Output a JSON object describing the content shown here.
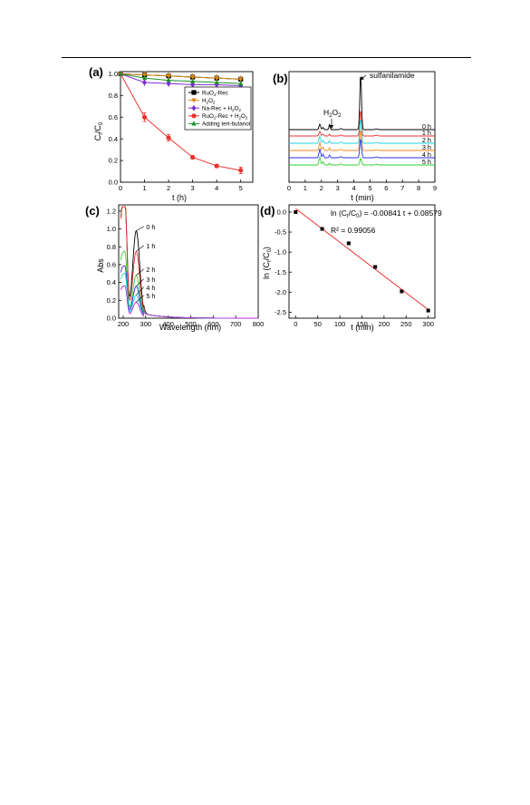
{
  "chart_data": [
    {
      "panel": "(a)",
      "type": "line",
      "title": "",
      "xlabel": "t (h)",
      "ylabel": "C_t/C_0",
      "xlim": [
        0,
        5.5
      ],
      "ylim": [
        0,
        1.02
      ],
      "xticks": [
        "0",
        "1",
        "2",
        "3",
        "4",
        "5"
      ],
      "yticks": [
        "0.0",
        "0.2",
        "0.4",
        "0.6",
        "0.8",
        "1.0"
      ],
      "legend_position": "center-right",
      "series": [
        {
          "name": "RuO2-Rec",
          "color": "#000000",
          "marker": "square",
          "x": [
            0,
            1,
            2,
            3,
            4,
            5
          ],
          "values": [
            1.0,
            0.99,
            0.98,
            0.97,
            0.96,
            0.95
          ]
        },
        {
          "name": "H2O2",
          "color": "#d98a1c",
          "marker": "triangle-down",
          "x": [
            0,
            1,
            2,
            3,
            4,
            5
          ],
          "values": [
            1.0,
            0.99,
            0.98,
            0.97,
            0.96,
            0.95
          ]
        },
        {
          "name": "Na-Rec + H2O2",
          "color": "#7a2fd1",
          "marker": "diamond",
          "x": [
            0,
            1,
            2,
            3,
            4,
            5
          ],
          "values": [
            1.0,
            0.92,
            0.91,
            0.9,
            0.9,
            0.89
          ]
        },
        {
          "name": "RuO2-Rec + H2O2",
          "color": "#e8332f",
          "marker": "circle",
          "x": [
            0,
            1,
            2,
            3,
            4,
            5
          ],
          "values": [
            1.0,
            0.6,
            0.41,
            0.23,
            0.15,
            0.11
          ],
          "errors": [
            0,
            0.04,
            0.03,
            0.015,
            0.015,
            0.03
          ]
        },
        {
          "name": "Adding tert-butanol",
          "color": "#1f8f2a",
          "marker": "triangle-up",
          "x": [
            0,
            1,
            2,
            3,
            4,
            5
          ],
          "values": [
            1.0,
            0.96,
            0.94,
            0.93,
            0.92,
            0.91
          ]
        }
      ]
    },
    {
      "panel": "(b)",
      "type": "line",
      "xlabel": "t (min)",
      "xlim": [
        0,
        9
      ],
      "xticks": [
        "0",
        "1",
        "2",
        "3",
        "4",
        "5",
        "6",
        "7",
        "8",
        "9"
      ],
      "annotations": [
        "sulfanilamide",
        "H2O2"
      ],
      "series": [
        {
          "name": "0 h",
          "color": "#000000"
        },
        {
          "name": "1 h",
          "color": "#e8332f"
        },
        {
          "name": "2 h",
          "color": "#22d4e0"
        },
        {
          "name": "3 h",
          "color": "#f08a1c"
        },
        {
          "name": "4 h",
          "color": "#2430e0"
        },
        {
          "name": "5 h",
          "color": "#2fd12f"
        }
      ],
      "peaks_min": [
        1.9,
        2.5,
        4.4
      ]
    },
    {
      "panel": "(c)",
      "type": "line",
      "xlabel": "Wavelength (nm)",
      "ylabel": "Abs",
      "xlim": [
        180,
        800
      ],
      "ylim": [
        0,
        1.27
      ],
      "xticks": [
        "200",
        "300",
        "400",
        "500",
        "600",
        "700",
        "800"
      ],
      "yticks": [
        "0.0",
        "0.2",
        "0.4",
        "0.6",
        "0.8",
        "1.0",
        "1.2"
      ],
      "series": [
        {
          "name": "0 h",
          "color": "#000000",
          "peak_nm": 258,
          "peak_abs": 0.98,
          "short_abs": 1.22
        },
        {
          "name": "1 h",
          "color": "#e8332f",
          "peak_nm": 258,
          "peak_abs": 0.75,
          "short_abs": 1.2
        },
        {
          "name": "2 h",
          "color": "#2fd12f",
          "peak_nm": 258,
          "peak_abs": 0.48,
          "short_abs": 0.7
        },
        {
          "name": "3 h",
          "color": "#2430e0",
          "peak_nm": 258,
          "peak_abs": 0.36,
          "short_abs": 0.55
        },
        {
          "name": "4 h",
          "color": "#22d4e0",
          "peak_nm": 258,
          "peak_abs": 0.26,
          "short_abs": 0.47
        },
        {
          "name": "5 h",
          "color": "#b52fd1",
          "peak_nm": 258,
          "peak_abs": 0.18,
          "short_abs": 0.34
        }
      ]
    },
    {
      "panel": "(d)",
      "type": "scatter",
      "xlabel": "t (min)",
      "ylabel": "ln (C_t/C_0)",
      "xlim": [
        -15,
        315
      ],
      "ylim": [
        -2.65,
        0.18
      ],
      "xticks": [
        "0",
        "50",
        "100",
        "150",
        "200",
        "250",
        "300"
      ],
      "yticks": [
        "0.0",
        "-0.5",
        "-1.0",
        "-1.5",
        "-2.0",
        "-2.5"
      ],
      "equation": "ln (C_t/C_0) = -0.00841 t + 0.08579",
      "r2": "R² = 0.99056",
      "points": {
        "x": [
          0,
          60,
          120,
          180,
          240,
          300
        ],
        "y": [
          0.0,
          -0.42,
          -0.78,
          -1.37,
          -1.98,
          -2.46
        ]
      },
      "fit": {
        "slope": -0.00841,
        "intercept": 0.08579,
        "color": "#e8332f"
      }
    }
  ]
}
